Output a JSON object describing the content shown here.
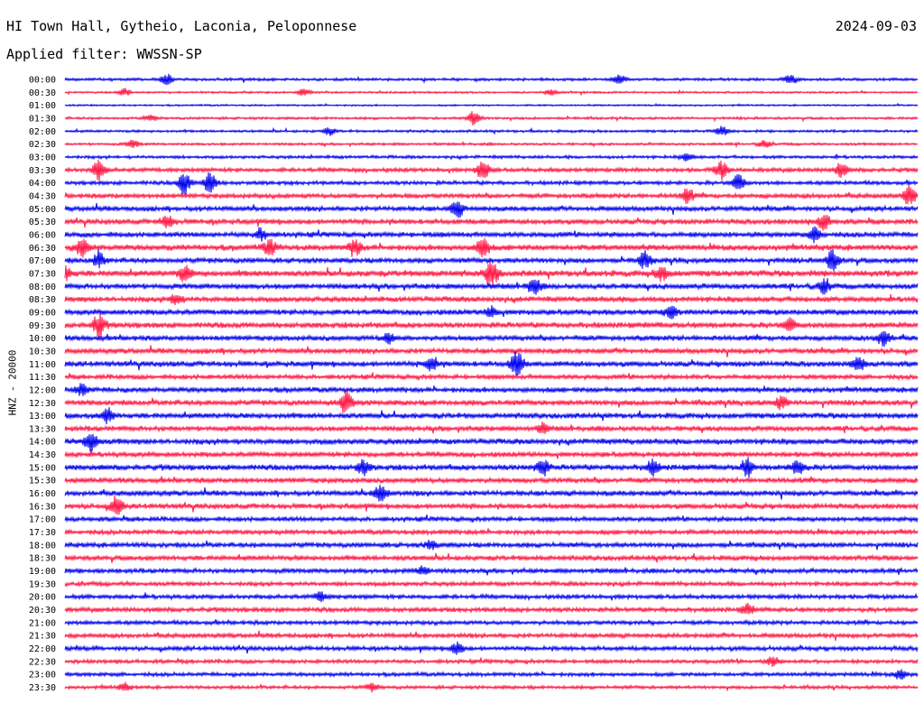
{
  "header": {
    "station": "HI Town Hall, Gytheio, Laconia, Peloponnese",
    "date": "2024-09-03",
    "filter": "Applied filter: WWSSN-SP",
    "channel": "HNZ - 20000"
  },
  "colors": {
    "odd_row": "#0000ee",
    "even_row": "#ff1744"
  },
  "chart_data": {
    "type": "line",
    "subtype": "helicorder",
    "xlabel": "",
    "ylabel": "HNZ - 20000",
    "row_minutes": 30,
    "rows": [
      {
        "label": "00:00",
        "activity": 0.35,
        "events": [
          {
            "at": 0.12,
            "amp": 0.7
          },
          {
            "at": 0.65,
            "amp": 0.6
          },
          {
            "at": 0.85,
            "amp": 0.5
          }
        ]
      },
      {
        "label": "00:30",
        "activity": 0.2,
        "events": [
          {
            "at": 0.07,
            "amp": 0.5
          },
          {
            "at": 0.28,
            "amp": 0.5
          },
          {
            "at": 0.57,
            "amp": 0.4
          }
        ]
      },
      {
        "label": "01:00",
        "activity": 0.15,
        "events": []
      },
      {
        "label": "01:30",
        "activity": 0.3,
        "events": [
          {
            "at": 0.48,
            "amp": 1.1
          },
          {
            "at": 0.1,
            "amp": 0.4
          }
        ]
      },
      {
        "label": "02:00",
        "activity": 0.3,
        "events": [
          {
            "at": 0.31,
            "amp": 0.5
          },
          {
            "at": 0.77,
            "amp": 0.6
          }
        ]
      },
      {
        "label": "02:30",
        "activity": 0.3,
        "events": [
          {
            "at": 0.08,
            "amp": 0.5
          },
          {
            "at": 0.82,
            "amp": 0.5
          }
        ]
      },
      {
        "label": "03:00",
        "activity": 0.4,
        "events": [
          {
            "at": 0.73,
            "amp": 0.5
          }
        ]
      },
      {
        "label": "03:30",
        "activity": 0.6,
        "events": [
          {
            "at": 0.04,
            "amp": 1.3
          },
          {
            "at": 0.49,
            "amp": 1.4
          },
          {
            "at": 0.77,
            "amp": 1.2
          },
          {
            "at": 0.91,
            "amp": 1.0
          }
        ]
      },
      {
        "label": "04:00",
        "activity": 0.55,
        "events": [
          {
            "at": 0.14,
            "amp": 1.6
          },
          {
            "at": 0.17,
            "amp": 1.4
          },
          {
            "at": 0.79,
            "amp": 1.1
          }
        ]
      },
      {
        "label": "04:30",
        "activity": 0.7,
        "events": [
          {
            "at": 0.73,
            "amp": 1.0
          },
          {
            "at": 0.99,
            "amp": 1.3
          }
        ]
      },
      {
        "label": "05:00",
        "activity": 0.75,
        "events": [
          {
            "at": 0.46,
            "amp": 1.2
          }
        ]
      },
      {
        "label": "05:30",
        "activity": 0.8,
        "events": [
          {
            "at": 0.12,
            "amp": 0.8
          },
          {
            "at": 0.89,
            "amp": 1.1
          }
        ]
      },
      {
        "label": "06:00",
        "activity": 0.8,
        "events": [
          {
            "at": 0.23,
            "amp": 0.8
          },
          {
            "at": 0.88,
            "amp": 1.0
          }
        ]
      },
      {
        "label": "06:30",
        "activity": 0.95,
        "events": [
          {
            "at": 0.02,
            "amp": 1.2
          },
          {
            "at": 0.24,
            "amp": 1.0
          },
          {
            "at": 0.34,
            "amp": 1.1
          },
          {
            "at": 0.49,
            "amp": 1.5
          }
        ]
      },
      {
        "label": "07:00",
        "activity": 0.8,
        "events": [
          {
            "at": 0.04,
            "amp": 1.0
          },
          {
            "at": 0.68,
            "amp": 1.1
          },
          {
            "at": 0.9,
            "amp": 1.4
          }
        ]
      },
      {
        "label": "07:30",
        "activity": 1.0,
        "events": [
          {
            "at": 0.0,
            "amp": 1.0
          },
          {
            "at": 0.14,
            "amp": 1.0
          },
          {
            "at": 0.5,
            "amp": 1.9
          },
          {
            "at": 0.7,
            "amp": 0.9
          }
        ]
      },
      {
        "label": "08:00",
        "activity": 0.85,
        "events": [
          {
            "at": 0.55,
            "amp": 1.1
          },
          {
            "at": 0.89,
            "amp": 0.9
          }
        ]
      },
      {
        "label": "08:30",
        "activity": 0.85,
        "events": [
          {
            "at": 0.13,
            "amp": 0.7
          }
        ]
      },
      {
        "label": "09:00",
        "activity": 0.85,
        "events": [
          {
            "at": 0.5,
            "amp": 0.7
          },
          {
            "at": 0.71,
            "amp": 0.8
          }
        ]
      },
      {
        "label": "09:30",
        "activity": 0.9,
        "events": [
          {
            "at": 0.04,
            "amp": 1.5
          },
          {
            "at": 0.85,
            "amp": 0.8
          }
        ]
      },
      {
        "label": "10:00",
        "activity": 0.8,
        "events": [
          {
            "at": 0.38,
            "amp": 0.7
          },
          {
            "at": 0.96,
            "amp": 1.1
          }
        ]
      },
      {
        "label": "10:30",
        "activity": 0.8,
        "events": []
      },
      {
        "label": "11:00",
        "activity": 0.85,
        "events": [
          {
            "at": 0.43,
            "amp": 1.0
          },
          {
            "at": 0.53,
            "amp": 1.8
          },
          {
            "at": 0.93,
            "amp": 0.8
          }
        ]
      },
      {
        "label": "11:30",
        "activity": 0.7,
        "events": []
      },
      {
        "label": "12:00",
        "activity": 0.8,
        "events": [
          {
            "at": 0.02,
            "amp": 0.8
          }
        ]
      },
      {
        "label": "12:30",
        "activity": 0.85,
        "events": [
          {
            "at": 0.33,
            "amp": 1.5
          },
          {
            "at": 0.84,
            "amp": 0.8
          }
        ]
      },
      {
        "label": "13:00",
        "activity": 0.85,
        "events": [
          {
            "at": 0.05,
            "amp": 1.0
          }
        ]
      },
      {
        "label": "13:30",
        "activity": 0.8,
        "events": [
          {
            "at": 0.56,
            "amp": 0.6
          }
        ]
      },
      {
        "label": "14:00",
        "activity": 0.9,
        "events": [
          {
            "at": 0.03,
            "amp": 1.4
          }
        ]
      },
      {
        "label": "14:30",
        "activity": 0.8,
        "events": []
      },
      {
        "label": "15:00",
        "activity": 0.9,
        "events": [
          {
            "at": 0.35,
            "amp": 1.0
          },
          {
            "at": 0.56,
            "amp": 1.1
          },
          {
            "at": 0.69,
            "amp": 1.0
          },
          {
            "at": 0.8,
            "amp": 1.2
          },
          {
            "at": 0.86,
            "amp": 1.1
          }
        ]
      },
      {
        "label": "15:30",
        "activity": 0.8,
        "events": []
      },
      {
        "label": "16:00",
        "activity": 0.8,
        "events": [
          {
            "at": 0.37,
            "amp": 1.1
          }
        ]
      },
      {
        "label": "16:30",
        "activity": 0.8,
        "events": [
          {
            "at": 0.06,
            "amp": 1.3
          }
        ]
      },
      {
        "label": "17:00",
        "activity": 0.7,
        "events": []
      },
      {
        "label": "17:30",
        "activity": 0.7,
        "events": []
      },
      {
        "label": "18:00",
        "activity": 0.75,
        "events": [
          {
            "at": 0.43,
            "amp": 0.6
          }
        ]
      },
      {
        "label": "18:30",
        "activity": 0.75,
        "events": []
      },
      {
        "label": "19:00",
        "activity": 0.7,
        "events": [
          {
            "at": 0.42,
            "amp": 0.6
          }
        ]
      },
      {
        "label": "19:30",
        "activity": 0.6,
        "events": []
      },
      {
        "label": "20:00",
        "activity": 0.65,
        "events": [
          {
            "at": 0.3,
            "amp": 0.6
          }
        ]
      },
      {
        "label": "20:30",
        "activity": 0.7,
        "events": [
          {
            "at": 0.8,
            "amp": 0.7
          }
        ]
      },
      {
        "label": "21:00",
        "activity": 0.6,
        "events": []
      },
      {
        "label": "21:30",
        "activity": 0.65,
        "events": []
      },
      {
        "label": "22:00",
        "activity": 0.65,
        "events": [
          {
            "at": 0.46,
            "amp": 0.8
          }
        ]
      },
      {
        "label": "22:30",
        "activity": 0.55,
        "events": [
          {
            "at": 0.83,
            "amp": 0.6
          }
        ]
      },
      {
        "label": "23:00",
        "activity": 0.55,
        "events": [
          {
            "at": 0.98,
            "amp": 0.6
          }
        ]
      },
      {
        "label": "23:30",
        "activity": 0.45,
        "events": [
          {
            "at": 0.07,
            "amp": 0.5
          },
          {
            "at": 0.36,
            "amp": 0.5
          }
        ]
      }
    ]
  }
}
